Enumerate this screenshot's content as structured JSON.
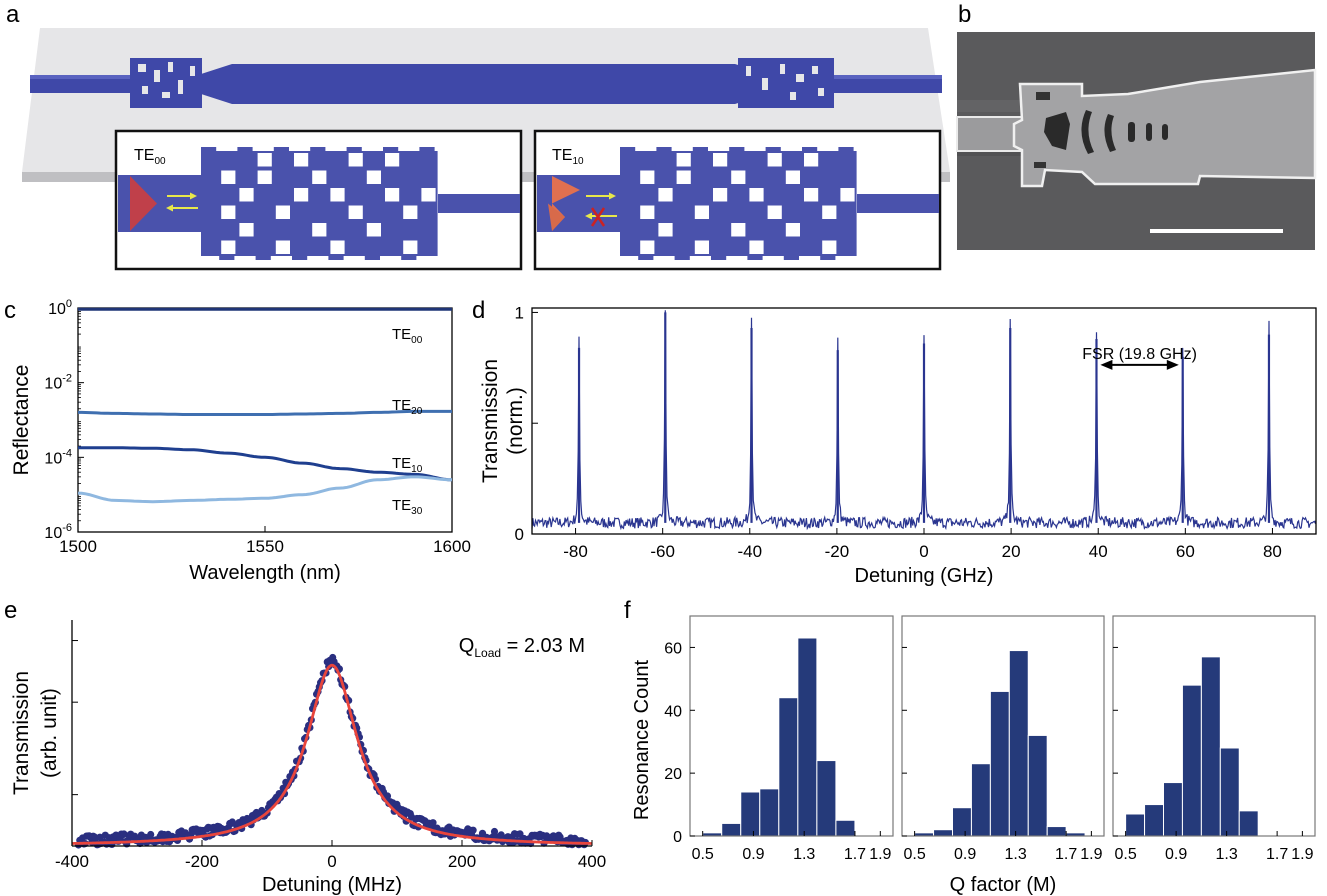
{
  "panel_labels": {
    "a": "a",
    "b": "b",
    "c": "c",
    "d": "d",
    "e": "e",
    "f": "f"
  },
  "panel_a": {
    "inset_left_mode": "TE",
    "inset_left_sub": "00",
    "inset_right_mode": "TE",
    "inset_right_sub": "10",
    "colors": {
      "waveguide": "#3f48a8",
      "slab": "#e6e6e8",
      "mode_fundamental": "#c0404a",
      "mode_first": "#e07050",
      "arrow": "#e8e84a",
      "block": "#cc2222"
    }
  },
  "chart_data": [
    {
      "id": "c",
      "type": "line",
      "xlabel": "Wavelength (nm)",
      "ylabel": "Reflectance",
      "xlim": [
        1500,
        1600
      ],
      "ylim": [
        1e-06,
        1
      ],
      "yscale": "log",
      "xticks": [
        1500,
        1550,
        1600
      ],
      "yticks": [
        {
          "base": "10",
          "exp": "-6",
          "value": 1e-06
        },
        {
          "base": "10",
          "exp": "-4",
          "value": 0.0001
        },
        {
          "base": "10",
          "exp": "-2",
          "value": 0.01
        },
        {
          "base": "10",
          "exp": "0",
          "value": 1
        }
      ],
      "x": [
        1500,
        1510,
        1520,
        1530,
        1540,
        1550,
        1560,
        1570,
        1580,
        1590,
        1600
      ],
      "series": [
        {
          "name": "TE",
          "sub": "00",
          "color": "#1f3577",
          "values": [
            0.93,
            0.93,
            0.93,
            0.93,
            0.93,
            0.93,
            0.93,
            0.93,
            0.93,
            0.93,
            0.93
          ]
        },
        {
          "name": "TE",
          "sub": "20",
          "color": "#3f6fb0",
          "values": [
            0.0016,
            0.0015,
            0.00145,
            0.0014,
            0.0014,
            0.0014,
            0.00145,
            0.0015,
            0.0016,
            0.0017,
            0.0017
          ]
        },
        {
          "name": "TE",
          "sub": "10",
          "color": "#1f3f8f",
          "values": [
            0.00018,
            0.00018,
            0.000175,
            0.00016,
            0.00013,
            0.0001,
            7e-05,
            5e-05,
            4e-05,
            3.5e-05,
            2.5e-05
          ]
        },
        {
          "name": "TE",
          "sub": "30",
          "color": "#8fb8e0",
          "values": [
            1.1e-05,
            7e-06,
            6.5e-06,
            7e-06,
            7.5e-06,
            8e-06,
            1e-05,
            1.5e-05,
            2.5e-05,
            3e-05,
            2.5e-05
          ]
        }
      ]
    },
    {
      "id": "d",
      "type": "line",
      "xlabel": "Detuning (GHz)",
      "ylabel_line1": "Transmission",
      "ylabel_line2": "(norm.)",
      "xlim": [
        -90,
        90
      ],
      "ylim": [
        0,
        1.02
      ],
      "xticks": [
        -80,
        -60,
        -40,
        -20,
        0,
        20,
        40,
        60,
        80
      ],
      "yticks": [
        {
          "label": "0",
          "value": 0
        },
        {
          "label": "1",
          "value": 1
        }
      ],
      "color": "#2a3590",
      "baseline": 0.05,
      "peaks": [
        {
          "x": -79.2,
          "value": 0.84
        },
        {
          "x": -59.4,
          "value": 1.0
        },
        {
          "x": -39.6,
          "value": 0.93
        },
        {
          "x": -19.8,
          "value": 0.83
        },
        {
          "x": 0.0,
          "value": 0.86
        },
        {
          "x": 19.8,
          "value": 0.93
        },
        {
          "x": 39.6,
          "value": 0.88
        },
        {
          "x": 59.4,
          "value": 0.8
        },
        {
          "x": 79.2,
          "value": 0.9
        }
      ],
      "annotation": {
        "text": "FSR (19.8 GHz)",
        "x_start": 40.5,
        "x_end": 58.5,
        "y": 0.7
      }
    },
    {
      "id": "e",
      "type": "scatter",
      "xlabel": "Detuning (MHz)",
      "ylabel_line1": "Transmission",
      "ylabel_line2": "(arb. unit)",
      "xlim": [
        -400,
        400
      ],
      "ylim": [
        0,
        1.1
      ],
      "xticks": [
        -400,
        -200,
        0,
        200,
        400
      ],
      "annotation": {
        "prefix": "Q",
        "sub": "Load",
        "suffix": " = 2.03 M"
      },
      "fit": {
        "type": "lorentzian",
        "center": 0,
        "fwhm": 95,
        "amplitude": 0.88,
        "baseline": 0.0,
        "color": "#e8453c"
      },
      "points_color": "#2a2f80"
    },
    {
      "id": "f",
      "type": "bar",
      "ylabel": "Resonance Count",
      "xlabel": "Q factor (M)",
      "ylim": [
        0,
        70
      ],
      "yticks": [
        0,
        20,
        40,
        60
      ],
      "xlim": [
        0.4,
        2.0
      ],
      "xticks": [
        "0.5",
        "0.9",
        "1.3",
        "1.7",
        "1.9"
      ],
      "xtick_values": [
        0.5,
        0.9,
        1.3,
        1.7,
        1.9
      ],
      "bin_edges": [
        0.5,
        0.65,
        0.8,
        0.95,
        1.1,
        1.25,
        1.4,
        1.55,
        1.7,
        1.85
      ],
      "color": "#253a7a",
      "series": [
        {
          "name": "",
          "values": [
            1,
            4,
            14,
            15,
            44,
            63,
            24,
            5,
            0
          ]
        },
        {
          "name": "",
          "values": [
            1,
            2,
            9,
            23,
            46,
            59,
            32,
            3,
            1
          ]
        },
        {
          "name": "",
          "values": [
            7,
            10,
            17,
            48,
            57,
            28,
            8,
            0,
            0
          ]
        }
      ]
    }
  ]
}
